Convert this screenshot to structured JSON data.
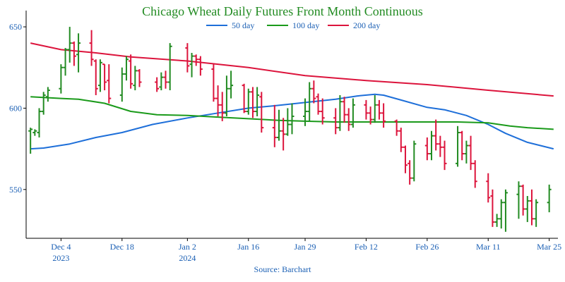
{
  "chart_data": {
    "type": "ohlc-line",
    "title": "Chicago Wheat Daily Futures Front Month Continuous",
    "source": "Source: Barchart",
    "ylim": [
      520,
      660
    ],
    "yticks": [
      550,
      600,
      650
    ],
    "xlim": [
      "2023-11-26",
      "2024-03-27"
    ],
    "xticks": [
      {
        "date": "2023-12-04",
        "label": "Dec 4",
        "sublabel": "2023"
      },
      {
        "date": "2023-12-18",
        "label": "Dec 18",
        "sublabel": ""
      },
      {
        "date": "2024-01-02",
        "label": "Jan 2",
        "sublabel": "2024"
      },
      {
        "date": "2024-01-16",
        "label": "Jan 16",
        "sublabel": ""
      },
      {
        "date": "2024-01-29",
        "label": "Jan 29",
        "sublabel": ""
      },
      {
        "date": "2024-02-12",
        "label": "Feb 12",
        "sublabel": ""
      },
      {
        "date": "2024-02-26",
        "label": "Feb 26",
        "sublabel": ""
      },
      {
        "date": "2024-03-11",
        "label": "Mar 11",
        "sublabel": ""
      },
      {
        "date": "2024-03-25",
        "label": "Mar 25",
        "sublabel": ""
      }
    ],
    "grid": false,
    "legend_position": "top-center",
    "colors": {
      "up": "#228b22",
      "down": "#dc143c",
      "ma50": "#1e6fd9",
      "ma100": "#1a9a1a",
      "ma200": "#dc143c",
      "title": "#228b22",
      "axis_labels": "#1a5fb4"
    },
    "moving_averages": [
      {
        "name": "50 day",
        "color": "#1e6fd9",
        "points": [
          [
            "2023-11-27",
            575
          ],
          [
            "2023-11-30",
            575.5
          ],
          [
            "2023-12-06",
            578
          ],
          [
            "2023-12-12",
            582
          ],
          [
            "2023-12-18",
            585
          ],
          [
            "2023-12-25",
            590
          ],
          [
            "2024-01-02",
            594
          ],
          [
            "2024-01-09",
            597
          ],
          [
            "2024-01-16",
            600
          ],
          [
            "2024-01-22",
            601.5
          ],
          [
            "2024-01-29",
            603.5
          ],
          [
            "2024-02-05",
            605.5
          ],
          [
            "2024-02-10",
            607.5
          ],
          [
            "2024-02-14",
            608.5
          ],
          [
            "2024-02-16",
            608
          ],
          [
            "2024-02-20",
            605
          ],
          [
            "2024-02-26",
            600.5
          ],
          [
            "2024-03-01",
            599
          ],
          [
            "2024-03-06",
            595.5
          ],
          [
            "2024-03-11",
            590
          ],
          [
            "2024-03-15",
            584.5
          ],
          [
            "2024-03-20",
            579
          ],
          [
            "2024-03-26",
            575
          ]
        ]
      },
      {
        "name": "100 day",
        "color": "#1a9a1a",
        "points": [
          [
            "2023-11-27",
            607
          ],
          [
            "2023-12-04",
            606
          ],
          [
            "2023-12-08",
            605.5
          ],
          [
            "2023-12-14",
            603
          ],
          [
            "2023-12-20",
            598
          ],
          [
            "2023-12-26",
            596
          ],
          [
            "2024-01-02",
            595.5
          ],
          [
            "2024-01-09",
            594.5
          ],
          [
            "2024-01-16",
            593.5
          ],
          [
            "2024-01-23",
            592.5
          ],
          [
            "2024-01-29",
            592
          ],
          [
            "2024-02-05",
            591.5
          ],
          [
            "2024-02-12",
            591.5
          ],
          [
            "2024-02-19",
            591.5
          ],
          [
            "2024-02-26",
            591.5
          ],
          [
            "2024-03-04",
            591.5
          ],
          [
            "2024-03-11",
            591
          ],
          [
            "2024-03-16",
            589
          ],
          [
            "2024-03-20",
            588
          ],
          [
            "2024-03-26",
            587
          ]
        ]
      },
      {
        "name": "200 day",
        "color": "#dc143c",
        "points": [
          [
            "2023-11-27",
            640
          ],
          [
            "2023-12-04",
            636
          ],
          [
            "2023-12-12",
            634
          ],
          [
            "2023-12-20",
            631.5
          ],
          [
            "2024-01-02",
            629
          ],
          [
            "2024-01-16",
            625
          ],
          [
            "2024-01-29",
            620
          ],
          [
            "2024-02-12",
            617
          ],
          [
            "2024-02-26",
            614.5
          ],
          [
            "2024-03-11",
            611
          ],
          [
            "2024-03-26",
            607.5
          ]
        ]
      }
    ],
    "ohlc": [
      [
        "2023-11-27",
        586,
        588,
        572,
        587
      ],
      [
        "2023-11-28",
        585,
        587,
        583,
        586
      ],
      [
        "2023-11-29",
        585,
        600,
        582,
        598
      ],
      [
        "2023-11-30",
        598,
        610,
        596,
        608
      ],
      [
        "2023-12-01",
        607,
        613,
        604,
        611
      ],
      [
        "2023-12-04",
        612,
        627,
        609,
        625
      ],
      [
        "2023-12-05",
        625,
        637,
        620,
        636
      ],
      [
        "2023-12-06",
        636,
        650,
        628,
        640
      ],
      [
        "2023-12-07",
        640,
        641,
        626,
        632
      ],
      [
        "2023-12-08",
        633,
        646,
        622,
        640
      ],
      [
        "2023-12-11",
        640,
        648,
        626,
        630
      ],
      [
        "2023-12-12",
        629,
        630,
        608,
        612
      ],
      [
        "2023-12-13",
        614,
        630,
        610,
        628
      ],
      [
        "2023-12-14",
        627,
        627,
        611,
        616
      ],
      [
        "2023-12-15",
        617,
        627,
        603,
        606
      ],
      [
        "2023-12-18",
        608,
        625,
        604,
        621
      ],
      [
        "2023-12-19",
        621,
        632,
        617,
        630
      ],
      [
        "2023-12-20",
        629,
        633,
        612,
        615
      ],
      [
        "2023-12-21",
        614,
        626,
        611,
        623
      ],
      [
        "2023-12-22",
        623,
        624,
        613,
        616
      ],
      [
        "2023-12-26",
        616,
        619,
        610,
        612
      ],
      [
        "2023-12-27",
        613,
        622,
        611,
        619
      ],
      [
        "2023-12-28",
        619,
        623,
        612,
        616
      ],
      [
        "2023-12-29",
        616,
        640,
        611,
        638
      ],
      [
        "2024-01-02",
        637,
        640,
        622,
        626
      ],
      [
        "2024-01-03",
        627,
        634,
        619,
        632
      ],
      [
        "2024-01-04",
        632,
        633,
        626,
        630
      ],
      [
        "2024-01-05",
        630,
        632,
        620,
        624
      ],
      [
        "2024-01-08",
        624,
        627,
        604,
        606
      ],
      [
        "2024-01-09",
        606,
        614,
        595,
        602
      ],
      [
        "2024-01-10",
        602,
        610,
        592,
        597
      ],
      [
        "2024-01-11",
        597,
        620,
        595,
        612
      ],
      [
        "2024-01-12",
        612,
        623,
        606,
        614
      ],
      [
        "2024-01-15",
        614,
        615,
        597,
        598
      ],
      [
        "2024-01-16",
        598,
        612,
        596,
        610
      ],
      [
        "2024-01-17",
        610,
        613,
        594,
        598
      ],
      [
        "2024-01-18",
        598,
        613,
        595,
        608
      ],
      [
        "2024-01-19",
        607,
        610,
        585,
        588
      ],
      [
        "2024-01-22",
        588,
        602,
        576,
        582
      ],
      [
        "2024-01-23",
        582,
        599,
        580,
        586
      ],
      [
        "2024-01-24",
        586,
        594,
        574,
        584
      ],
      [
        "2024-01-25",
        584,
        600,
        583,
        590
      ],
      [
        "2024-01-26",
        590,
        603,
        584,
        595
      ],
      [
        "2024-01-29",
        595,
        606,
        589,
        598
      ],
      [
        "2024-01-30",
        598,
        616,
        592,
        612
      ],
      [
        "2024-01-31",
        612,
        617,
        603,
        606
      ],
      [
        "2024-02-01",
        607,
        609,
        596,
        598
      ],
      [
        "2024-02-02",
        598,
        606,
        590,
        594
      ],
      [
        "2024-02-05",
        594,
        600,
        584,
        588
      ],
      [
        "2024-02-06",
        588,
        608,
        586,
        604
      ],
      [
        "2024-02-07",
        604,
        607,
        591,
        596
      ],
      [
        "2024-02-08",
        596,
        600,
        586,
        590
      ],
      [
        "2024-02-09",
        590,
        606,
        588,
        602
      ],
      [
        "2024-02-12",
        602,
        605,
        593,
        597
      ],
      [
        "2024-02-13",
        597,
        601,
        590,
        593
      ],
      [
        "2024-02-14",
        593,
        608,
        591,
        602
      ],
      [
        "2024-02-15",
        602,
        605,
        593,
        597
      ],
      [
        "2024-02-16",
        597,
        603,
        588,
        592
      ],
      [
        "2024-02-19",
        592,
        593,
        583,
        586
      ],
      [
        "2024-02-20",
        586,
        588,
        573,
        576
      ],
      [
        "2024-02-21",
        576,
        577,
        560,
        565
      ],
      [
        "2024-02-22",
        566,
        568,
        553,
        557
      ],
      [
        "2024-02-23",
        557,
        580,
        555,
        578
      ],
      [
        "2024-02-26",
        577,
        582,
        568,
        572
      ],
      [
        "2024-02-27",
        572,
        586,
        568,
        583
      ],
      [
        "2024-02-28",
        583,
        593,
        574,
        578
      ],
      [
        "2024-02-29",
        578,
        583,
        570,
        576
      ],
      [
        "2024-03-01",
        576,
        580,
        562,
        566
      ],
      [
        "2024-03-04",
        566,
        589,
        564,
        585
      ],
      [
        "2024-03-05",
        585,
        586,
        568,
        572
      ],
      [
        "2024-03-06",
        572,
        580,
        566,
        577
      ],
      [
        "2024-03-07",
        577,
        583,
        562,
        566
      ],
      [
        "2024-03-08",
        566,
        568,
        551,
        555
      ],
      [
        "2024-03-11",
        555,
        560,
        542,
        545
      ],
      [
        "2024-03-12",
        546,
        550,
        527,
        530
      ],
      [
        "2024-03-13",
        530,
        535,
        527,
        532
      ],
      [
        "2024-03-14",
        532,
        544,
        526,
        542
      ],
      [
        "2024-03-15",
        542,
        550,
        524,
        548
      ],
      [
        "2024-03-18",
        547,
        555,
        532,
        552
      ],
      [
        "2024-03-19",
        552,
        553,
        534,
        538
      ],
      [
        "2024-03-20",
        538,
        546,
        530,
        543
      ],
      [
        "2024-03-21",
        543,
        550,
        528,
        532
      ],
      [
        "2024-03-22",
        532,
        544,
        527,
        542
      ],
      [
        "2024-03-25",
        542,
        553,
        536,
        550
      ]
    ]
  }
}
